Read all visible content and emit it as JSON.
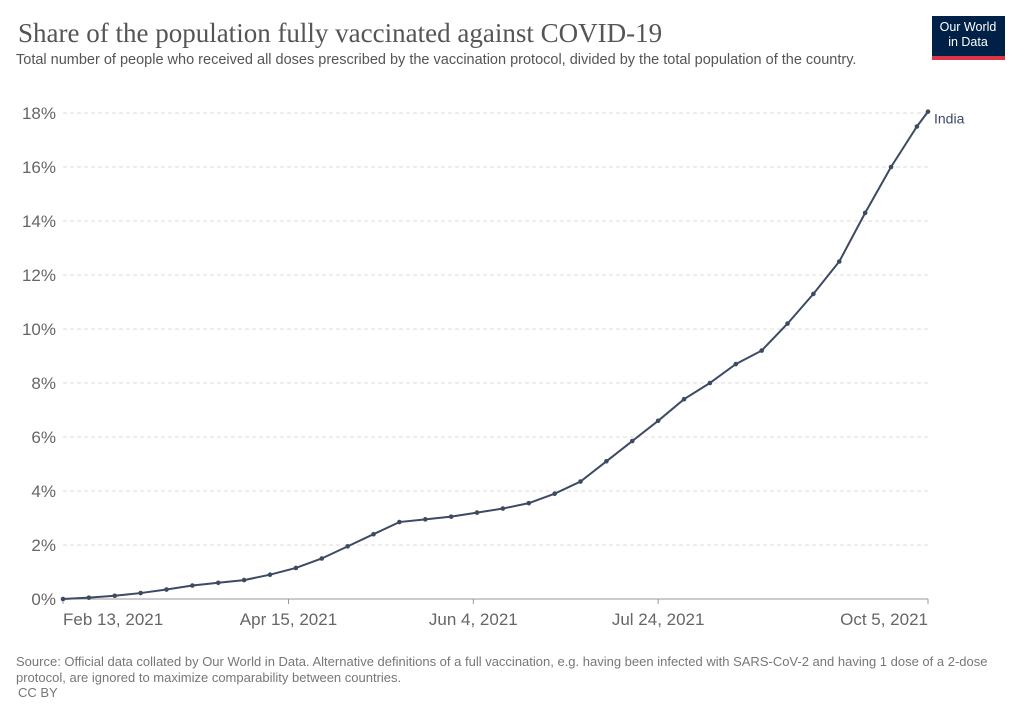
{
  "chart_data": {
    "type": "line",
    "title": "Share of the population fully vaccinated against COVID-19",
    "subtitle": "Total number of people who received all doses prescribed by the vaccination protocol, divided by the total population of the country.",
    "source": "Source: Official data collated by Our World in Data. Alternative definitions of a full vaccination, e.g. having been infected with SARS-CoV-2 and having 1 dose of a 2-dose protocol, are ignored to maximize comparability between countries.",
    "license": "CC BY",
    "logo": [
      "Our World",
      "in Data"
    ],
    "x": [
      "2021-02-13",
      "2021-02-20",
      "2021-02-27",
      "2021-03-06",
      "2021-03-13",
      "2021-03-20",
      "2021-03-27",
      "2021-04-03",
      "2021-04-10",
      "2021-04-17",
      "2021-04-24",
      "2021-05-01",
      "2021-05-08",
      "2021-05-15",
      "2021-05-22",
      "2021-05-29",
      "2021-06-05",
      "2021-06-12",
      "2021-06-19",
      "2021-06-26",
      "2021-07-03",
      "2021-07-10",
      "2021-07-17",
      "2021-07-24",
      "2021-07-31",
      "2021-08-07",
      "2021-08-14",
      "2021-08-21",
      "2021-08-28",
      "2021-09-04",
      "2021-09-11",
      "2021-09-18",
      "2021-09-25",
      "2021-10-02",
      "2021-10-05"
    ],
    "series": [
      {
        "name": "India",
        "color": "#3c4a64",
        "values": [
          0,
          0.05,
          0.12,
          0.22,
          0.35,
          0.5,
          0.6,
          0.7,
          0.9,
          1.15,
          1.5,
          1.95,
          2.4,
          2.85,
          2.95,
          3.05,
          3.2,
          3.35,
          3.55,
          3.9,
          4.35,
          5.1,
          5.85,
          6.6,
          7.4,
          8.0,
          8.7,
          9.2,
          10.2,
          11.3,
          12.5,
          14.3,
          16.0,
          17.5,
          18.05
        ]
      }
    ],
    "xlim": [
      "2021-02-13",
      "2021-10-05"
    ],
    "xticks": [
      {
        "value": "2021-02-13",
        "label": "Feb 13, 2021"
      },
      {
        "value": "2021-04-15",
        "label": "Apr 15, 2021"
      },
      {
        "value": "2021-06-04",
        "label": "Jun 4, 2021"
      },
      {
        "value": "2021-07-24",
        "label": "Jul 24, 2021"
      },
      {
        "value": "2021-10-05",
        "label": "Oct 5, 2021"
      }
    ],
    "ylim": [
      0,
      18
    ],
    "yticks": [
      {
        "value": 0,
        "label": "0%"
      },
      {
        "value": 2,
        "label": "2%"
      },
      {
        "value": 4,
        "label": "4%"
      },
      {
        "value": 6,
        "label": "6%"
      },
      {
        "value": 8,
        "label": "8%"
      },
      {
        "value": 10,
        "label": "10%"
      },
      {
        "value": 12,
        "label": "12%"
      },
      {
        "value": 14,
        "label": "14%"
      },
      {
        "value": 16,
        "label": "16%"
      },
      {
        "value": 18,
        "label": "18%"
      }
    ],
    "grid": true
  }
}
